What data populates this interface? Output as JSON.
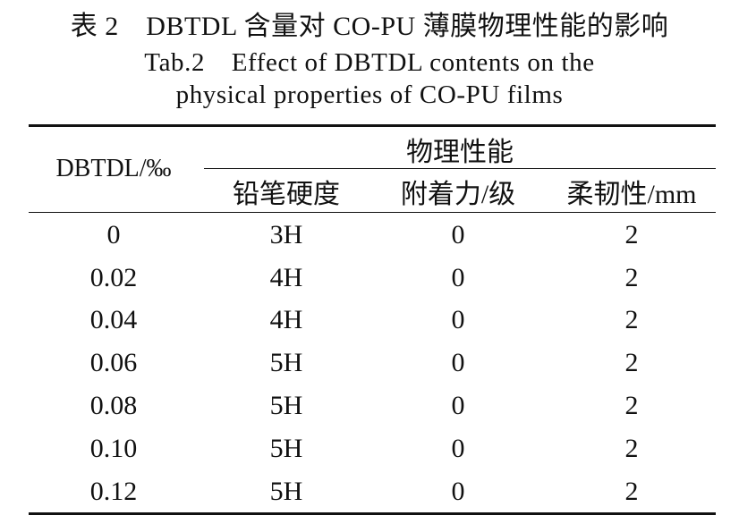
{
  "caption": {
    "cn": "表 2　DBTDL 含量对 CO-PU 薄膜物理性能的影响",
    "en_line1": "Tab.2　Effect of DBTDL contents on the",
    "en_line2": "physical properties of CO-PU films"
  },
  "table": {
    "row_header": "DBTDL/‰",
    "group_header": "物理性能",
    "columns": [
      "铅笔硬度",
      "附着力/级",
      "柔韧性/mm"
    ],
    "rows": [
      [
        "0",
        "3H",
        "0",
        "2"
      ],
      [
        "0.02",
        "4H",
        "0",
        "2"
      ],
      [
        "0.04",
        "4H",
        "0",
        "2"
      ],
      [
        "0.06",
        "5H",
        "0",
        "2"
      ],
      [
        "0.08",
        "5H",
        "0",
        "2"
      ],
      [
        "0.10",
        "5H",
        "0",
        "2"
      ],
      [
        "0.12",
        "5H",
        "0",
        "2"
      ]
    ]
  }
}
